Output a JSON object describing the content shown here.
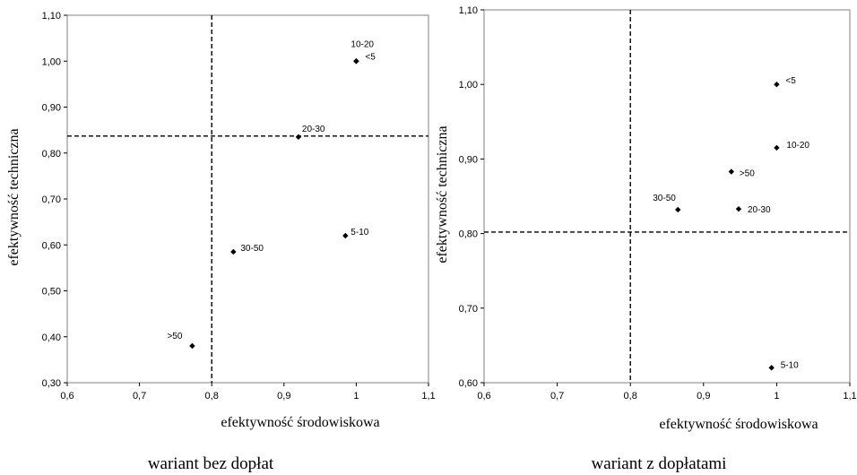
{
  "chart_data": [
    {
      "type": "scatter",
      "caption": "wariant bez dopłat",
      "xlabel": "efektywność środowiskowa",
      "ylabel": "efektywność techniczna",
      "xlim": [
        0.6,
        1.1
      ],
      "ylim": [
        0.3,
        1.1
      ],
      "xticks": [
        "0,6",
        "0,7",
        "0,8",
        "0,9",
        "1",
        "1,1"
      ],
      "yticks": [
        "0,30",
        "0,40",
        "0,50",
        "0,60",
        "0,70",
        "0,80",
        "0,90",
        "1,00",
        "1,10"
      ],
      "grid": false,
      "reference_lines": {
        "x": 0.8,
        "y": 0.837
      },
      "points": [
        {
          "label": "<5",
          "x": 1.0,
          "y": 1.0
        },
        {
          "label": "10-20",
          "x": 1.0,
          "y": 1.0
        },
        {
          "label": "20-30",
          "x": 0.92,
          "y": 0.835
        },
        {
          "label": "5-10",
          "x": 0.985,
          "y": 0.62
        },
        {
          "label": "30-50",
          "x": 0.83,
          "y": 0.585
        },
        {
          "label": ">50",
          "x": 0.773,
          "y": 0.38
        }
      ]
    },
    {
      "type": "scatter",
      "caption": "wariant z dopłatami",
      "xlabel": "efektywność środowiskowa",
      "ylabel": "efektywność techniczna",
      "xlim": [
        0.6,
        1.1
      ],
      "ylim": [
        0.6,
        1.1
      ],
      "xticks": [
        "0,6",
        "0,7",
        "0,8",
        "0,9",
        "1",
        "1,1"
      ],
      "yticks": [
        "0,60",
        "0,70",
        "0,80",
        "0,90",
        "1,00",
        "1,10"
      ],
      "grid": false,
      "reference_lines": {
        "x": 0.8,
        "y": 0.802
      },
      "points": [
        {
          "label": "<5",
          "x": 1.0,
          "y": 1.0
        },
        {
          "label": "10-20",
          "x": 1.0,
          "y": 0.915
        },
        {
          "label": ">50",
          "x": 0.938,
          "y": 0.883
        },
        {
          "label": "30-50",
          "x": 0.865,
          "y": 0.832
        },
        {
          "label": "20-30",
          "x": 0.948,
          "y": 0.833
        },
        {
          "label": "5-10",
          "x": 0.993,
          "y": 0.62
        }
      ]
    }
  ]
}
